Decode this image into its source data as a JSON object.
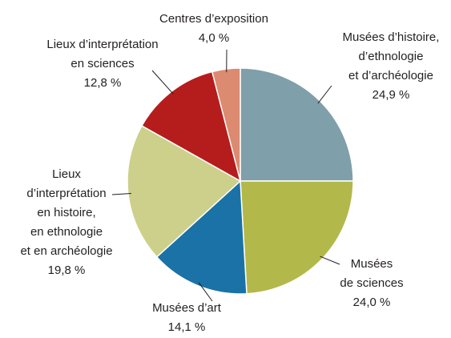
{
  "chart_data": {
    "type": "pie",
    "categories": [
      [
        "Musées d’histoire,",
        "d’ethnologie",
        "et d’archéologie"
      ],
      [
        "Musées",
        "de sciences"
      ],
      [
        "Musées d’art"
      ],
      [
        "Lieux",
        "d’interprétation",
        "en histoire,",
        "en ethnologie",
        "et en archéologie"
      ],
      [
        "Lieux d’interprétation",
        "en sciences"
      ],
      [
        "Centres d’exposition"
      ]
    ],
    "values": [
      24.9,
      24.0,
      14.1,
      19.8,
      12.8,
      4.0
    ],
    "value_labels": [
      "24,9 %",
      "24,0 %",
      "14,1 %",
      "19,8 %",
      "12,8 %",
      "4,0 %"
    ],
    "colors": [
      "#7f9faa",
      "#b3b84a",
      "#1a72a6",
      "#cdd08a",
      "#b51d1c",
      "#dc8a70"
    ]
  }
}
